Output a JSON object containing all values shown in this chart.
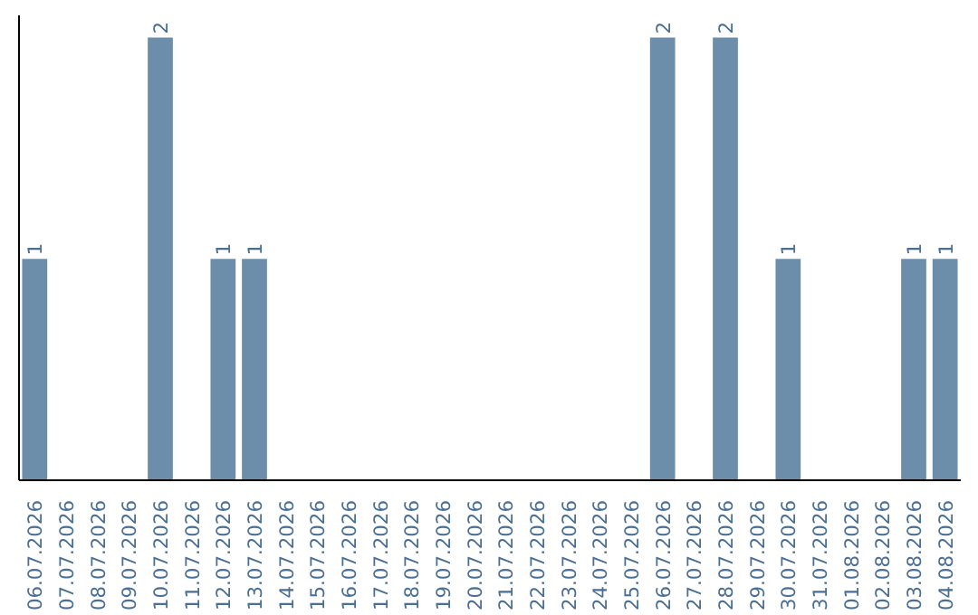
{
  "chart_data": {
    "type": "bar",
    "categories": [
      "06.07.2026",
      "07.07.2026",
      "08.07.2026",
      "09.07.2026",
      "10.07.2026",
      "11.07.2026",
      "12.07.2026",
      "13.07.2026",
      "14.07.2026",
      "15.07.2026",
      "16.07.2026",
      "17.07.2026",
      "18.07.2026",
      "19.07.2026",
      "20.07.2026",
      "21.07.2026",
      "22.07.2026",
      "23.07.2026",
      "24.07.2026",
      "25.07.2026",
      "26.07.2026",
      "27.07.2026",
      "28.07.2026",
      "29.07.2026",
      "30.07.2026",
      "31.07.2026",
      "01.08.2026",
      "02.08.2026",
      "03.08.2026",
      "04.08.2026"
    ],
    "values": [
      1,
      0,
      0,
      0,
      2,
      0,
      1,
      1,
      0,
      0,
      0,
      0,
      0,
      0,
      0,
      0,
      0,
      0,
      0,
      0,
      2,
      0,
      2,
      0,
      1,
      0,
      0,
      0,
      1,
      1
    ],
    "value_labels": [
      "1",
      null,
      null,
      null,
      "2",
      null,
      "1",
      "1",
      null,
      null,
      null,
      null,
      null,
      null,
      null,
      null,
      null,
      null,
      null,
      null,
      "2",
      null,
      "2",
      null,
      "1",
      null,
      null,
      null,
      "1",
      "1"
    ],
    "color": "#6d8eab",
    "grid": false,
    "tick_labels": "x"
  }
}
